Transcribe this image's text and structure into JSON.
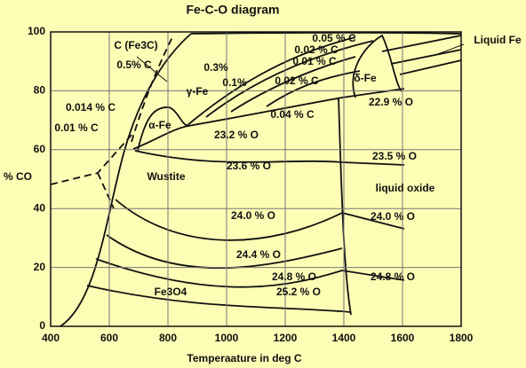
{
  "chart_data": {
    "type": "phase-diagram",
    "title": "Fe-C-O diagram",
    "x_label": "Temperaature in deg C",
    "y_label": "% CO",
    "xlim": [
      400,
      1800
    ],
    "ylim": [
      0,
      100
    ],
    "xticks": [
      400,
      600,
      800,
      1000,
      1200,
      1400,
      1600,
      1800
    ],
    "yticks": [
      0,
      20,
      40,
      60,
      80,
      100
    ],
    "grid": true,
    "annotations": [
      "C (Fe3C)",
      "0.5% C",
      "0.3%",
      "γ-Fe",
      "0.1%",
      "0.02 % C",
      "0.05 % C",
      "0.02 % C",
      "0.01 % C",
      "Liquid Fe",
      "δ-Fe",
      "0.014 % C",
      "α-Fe",
      "0.04 % C",
      "22.9 % O",
      "0.01 % C",
      "23.2 % O",
      "23.5 % O",
      "Wustite",
      "23.6 % O",
      "liquid oxide",
      "24.0 % O",
      "24.0 % O",
      "24.4 % O",
      "24.8 % O",
      "24.8 % O",
      "25.2 % O",
      "Fe3O4"
    ]
  }
}
